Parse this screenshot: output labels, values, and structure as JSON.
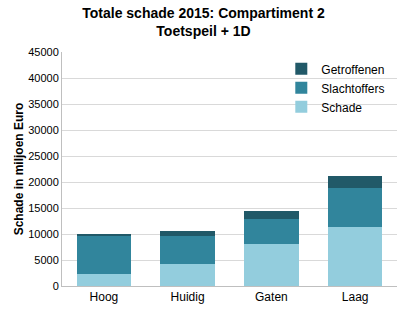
{
  "chart_data": {
    "type": "bar",
    "stacked": true,
    "title": "Totale schade 2015: Compartiment 2",
    "subtitle": "Toetspeil + 1D",
    "y_label": "Schade in miljoen Euro",
    "categories": [
      "Hoog",
      "Huidig",
      "Gaten",
      "Laag"
    ],
    "series": [
      {
        "name": "Schade",
        "color": "#93cddd",
        "values": [
          2400,
          4200,
          8000,
          11300
        ]
      },
      {
        "name": "Slachtoffers",
        "color": "#31859c",
        "values": [
          7300,
          5500,
          4800,
          7500
        ]
      },
      {
        "name": "Getroffenen",
        "color": "#215968",
        "values": [
          200,
          800,
          1600,
          2300
        ]
      }
    ],
    "ylim": [
      0,
      45000
    ],
    "yticks": [
      0,
      5000,
      10000,
      15000,
      20000,
      25000,
      30000,
      35000,
      40000,
      45000
    ],
    "grid": true,
    "legend": "top right"
  }
}
